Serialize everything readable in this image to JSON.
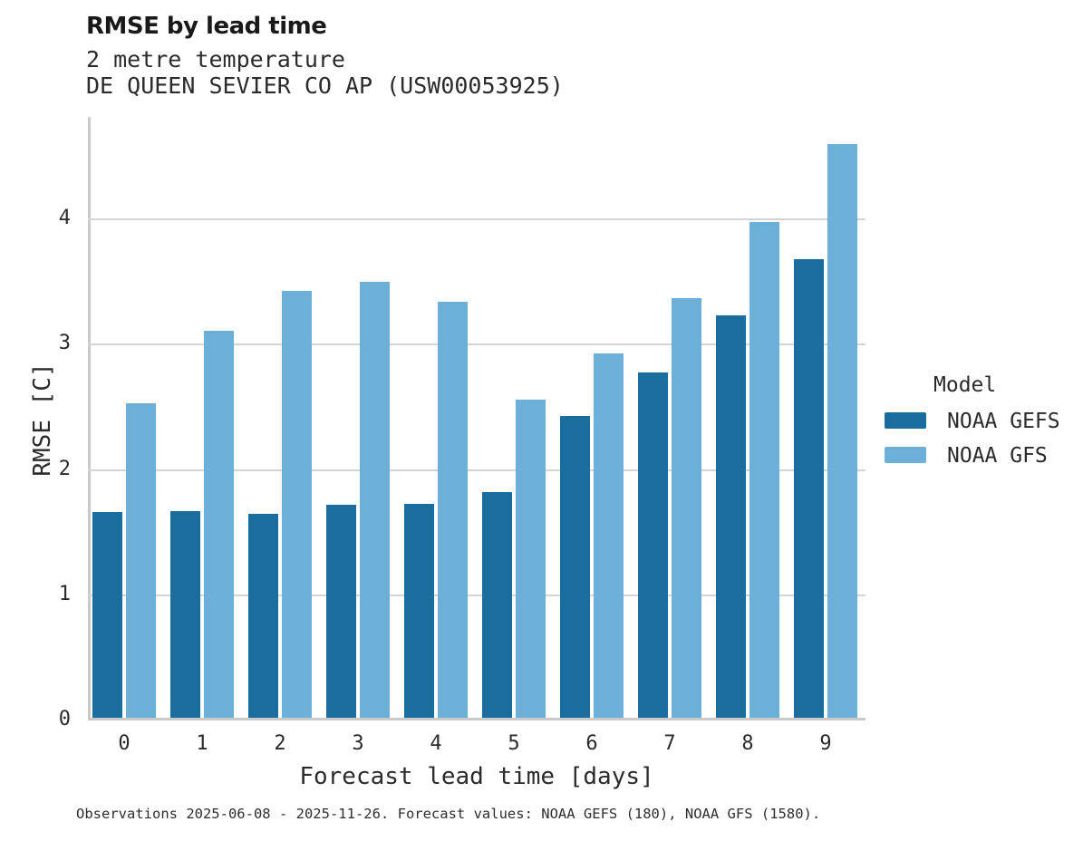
{
  "header": {
    "title": "RMSE by lead time",
    "subtitle": "2 metre temperature",
    "station": "DE QUEEN SEVIER CO AP (USW00053925)"
  },
  "chart_data": {
    "type": "bar",
    "title": "RMSE by lead time",
    "subtitle": "2 metre temperature",
    "station": "DE QUEEN SEVIER CO AP (USW00053925)",
    "categories": [
      "0",
      "1",
      "2",
      "3",
      "4",
      "5",
      "6",
      "7",
      "8",
      "9"
    ],
    "series": [
      {
        "name": "NOAA GEFS",
        "color": "#1a6d9c",
        "values": [
          1.64,
          1.65,
          1.63,
          1.7,
          1.71,
          1.8,
          2.41,
          2.76,
          3.21,
          3.66
        ]
      },
      {
        "name": "NOAA GFS",
        "color": "#6cb0d8",
        "values": [
          2.51,
          3.09,
          3.41,
          3.48,
          3.32,
          2.54,
          2.91,
          3.35,
          3.96,
          4.58
        ]
      }
    ],
    "xlabel": "Forecast lead time [days]",
    "ylabel": "RMSE [C]",
    "ylim": [
      0,
      4.82
    ],
    "yticks": [
      0,
      1,
      2,
      3,
      4
    ],
    "grid": true,
    "grid_color": "#d4d4d4",
    "legend_position": "right-center"
  },
  "legend": {
    "title": "Model",
    "entries": [
      {
        "label": "NOAA GEFS",
        "color": "#1a6d9c"
      },
      {
        "label": "NOAA GFS",
        "color": "#6cb0d8"
      }
    ]
  },
  "caption": "Observations 2025-06-08 - 2025-11-26. Forecast values: NOAA GEFS (180), NOAA GFS (1580)."
}
